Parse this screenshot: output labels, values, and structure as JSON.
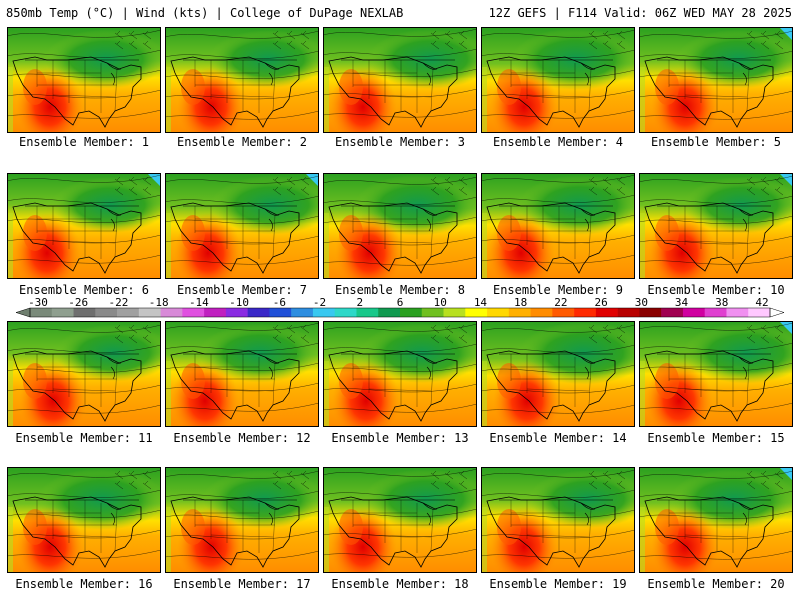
{
  "header": {
    "title": "850mb Temp (°C) | Wind (kts) | College of DuPage NEXLAB",
    "run_info": "12Z GEFS | F114 Valid: 06Z WED MAY 28 2025"
  },
  "members": [
    {
      "label": "Ensemble Member: 1",
      "north_cool": 0.55
    },
    {
      "label": "Ensemble Member: 2",
      "north_cool": 0.5
    },
    {
      "label": "Ensemble Member: 3",
      "north_cool": 0.6
    },
    {
      "label": "Ensemble Member: 4",
      "north_cool": 0.7
    },
    {
      "label": "Ensemble Member: 5",
      "north_cool": 0.55
    },
    {
      "label": "Ensemble Member: 6",
      "north_cool": 0.4
    },
    {
      "label": "Ensemble Member: 7",
      "north_cool": 0.55
    },
    {
      "label": "Ensemble Member: 8",
      "north_cool": 0.65
    },
    {
      "label": "Ensemble Member: 9",
      "north_cool": 0.6
    },
    {
      "label": "Ensemble Member: 10",
      "north_cool": 0.45
    },
    {
      "label": "Ensemble Member: 11",
      "north_cool": 0.45
    },
    {
      "label": "Ensemble Member: 12",
      "north_cool": 0.55
    },
    {
      "label": "Ensemble Member: 13",
      "north_cool": 0.6
    },
    {
      "label": "Ensemble Member: 14",
      "north_cool": 0.75
    },
    {
      "label": "Ensemble Member: 15",
      "north_cool": 0.65
    },
    {
      "label": "Ensemble Member: 16",
      "north_cool": 0.7
    },
    {
      "label": "Ensemble Member: 17",
      "north_cool": 0.55
    },
    {
      "label": "Ensemble Member: 18",
      "north_cool": 0.6
    },
    {
      "label": "Ensemble Member: 19",
      "north_cool": 0.5
    },
    {
      "label": "Ensemble Member: 20",
      "north_cool": 0.65
    }
  ],
  "colorbar": {
    "tick_labels": [
      "-30",
      "-26",
      "-22",
      "-18",
      "-14",
      "-10",
      "-6",
      "-2",
      "2",
      "6",
      "10",
      "14",
      "18",
      "22",
      "26",
      "30",
      "34",
      "38",
      "42"
    ],
    "colors": [
      "#7a8a7a",
      "#8f9f8f",
      "#6f6f6f",
      "#8a8a8a",
      "#a0a0a0",
      "#c4c4c4",
      "#d88ad8",
      "#e050e0",
      "#c020c0",
      "#8a2be2",
      "#3a28c8",
      "#2050d8",
      "#2e8ee0",
      "#38c8f0",
      "#2ed8c8",
      "#18c88a",
      "#109a50",
      "#2aa020",
      "#70c020",
      "#b8e020",
      "#ffff00",
      "#ffd800",
      "#ffb000",
      "#ff8c00",
      "#ff5a00",
      "#ff2a00",
      "#e00000",
      "#b80000",
      "#8a0000",
      "#a00050",
      "#d000a0",
      "#e040d0",
      "#f090f0",
      "#ffc8ff"
    ]
  }
}
